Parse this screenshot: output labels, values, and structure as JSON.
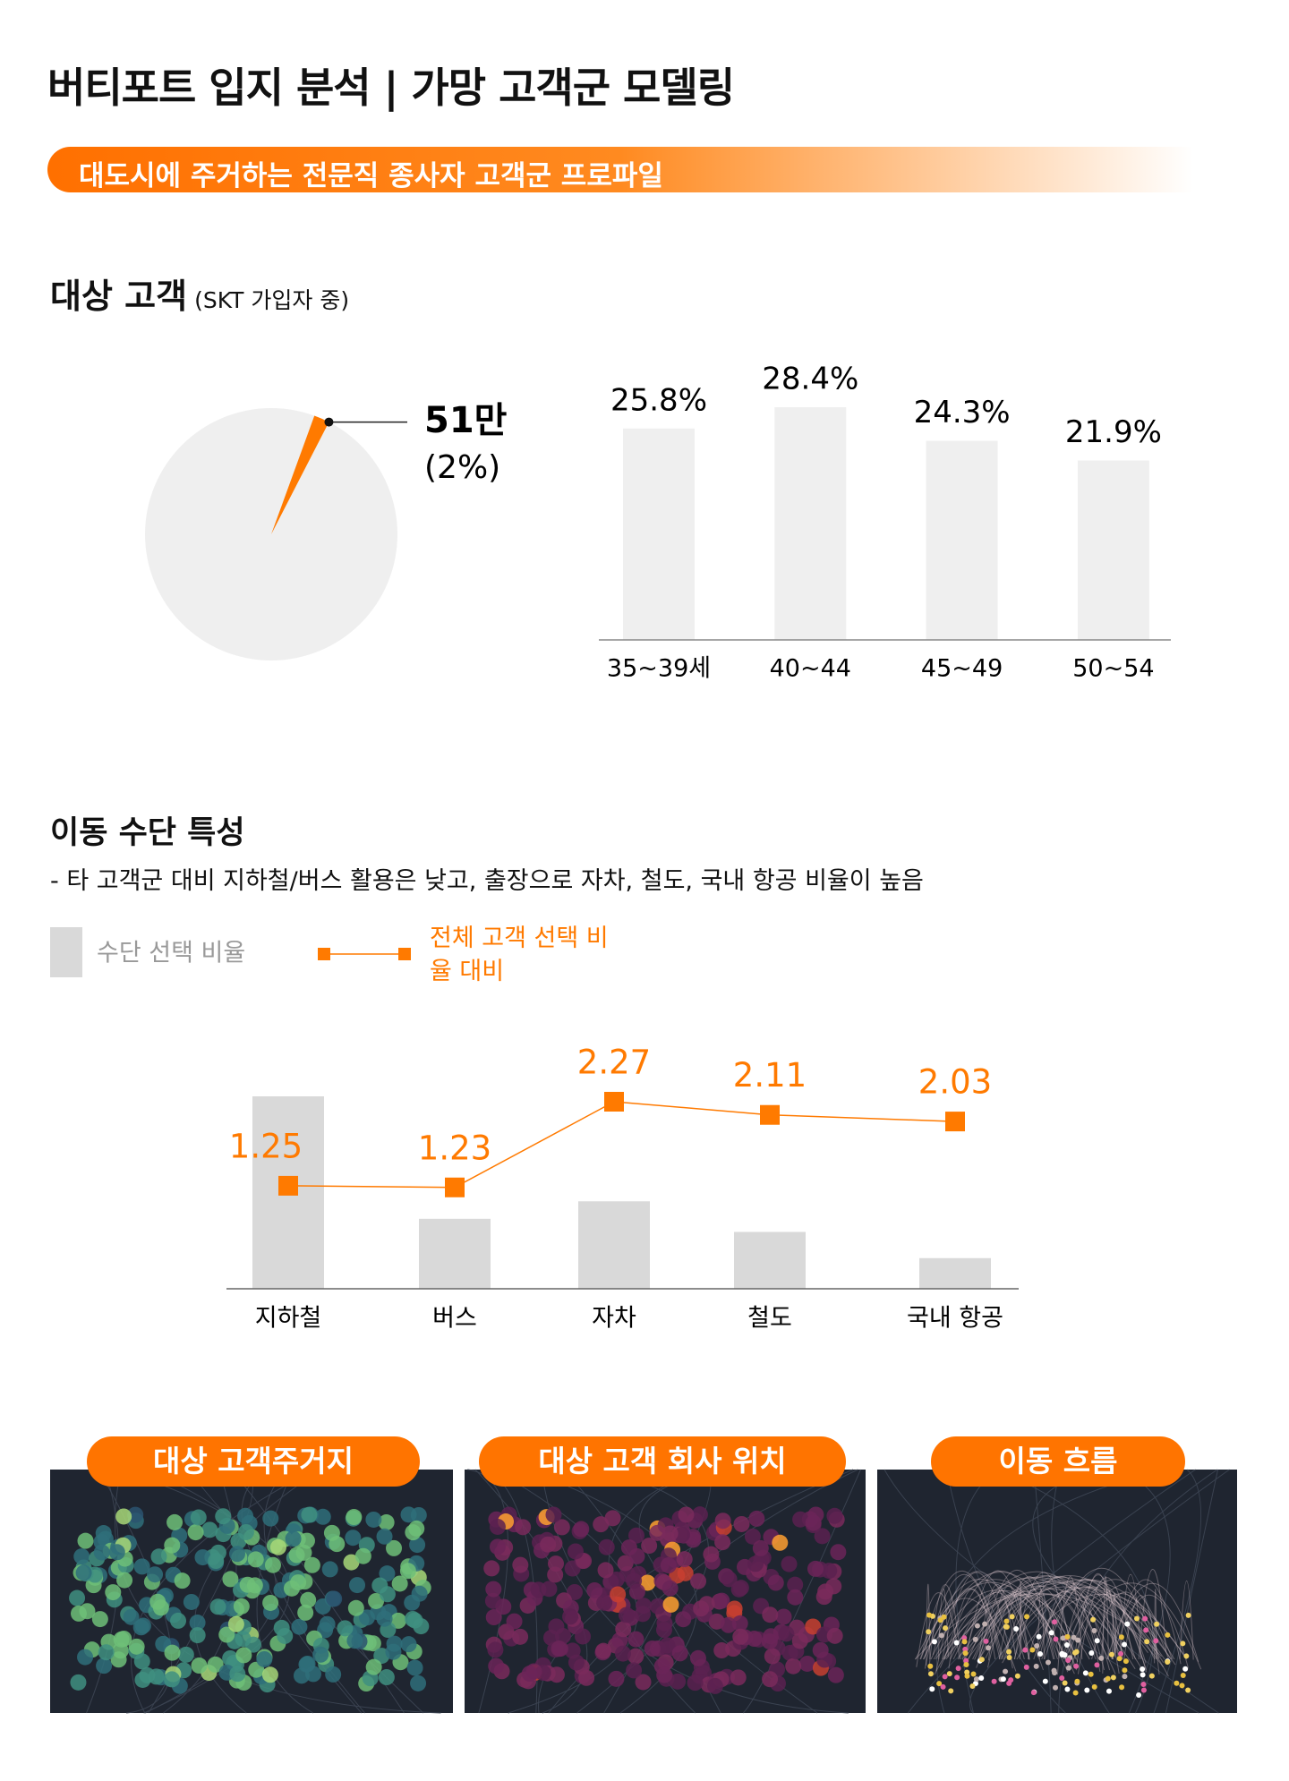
{
  "header": {
    "title": "버티포트 입지 분석 | 가망 고객군 모델링",
    "banner": "대도시에 주거하는 전문직 종사자 고객군 프로파일"
  },
  "target_section": {
    "title": "대상 고객",
    "subtitle": "(SKT 가입자 중)"
  },
  "mobility_section": {
    "title": "이동 수단 특성",
    "note": "- 타 고객군 대비 지하철/버스 활용은 낮고, 출장으로 자차, 철도, 국내 항공 비율이 높음"
  },
  "chart_data": [
    {
      "type": "pie",
      "values": [
        2
      ],
      "value_labels": [
        "(2%)"
      ],
      "annotation": "51만",
      "color": "#ff7a00",
      "background": "#efefef"
    },
    {
      "type": "bar",
      "categories": [
        "35~39세",
        "40~44",
        "45~49",
        "50~54"
      ],
      "values": [
        25.8,
        28.4,
        24.3,
        21.9
      ],
      "value_labels": [
        "25.8%",
        "28.4%",
        "24.3%",
        "21.9%"
      ],
      "color": "#efefef"
    },
    {
      "type": "bar-line",
      "categories": [
        "지하철",
        "버스",
        "자차",
        "철도",
        "국내 항공"
      ],
      "series": [
        {
          "name": "수단 선택 비율",
          "type": "bar",
          "color": "#d9d9d9",
          "values": [
            44,
            16,
            20,
            13,
            7
          ]
        },
        {
          "name": "전체 고객 선택 비율 대비",
          "type": "line",
          "axis": "y2",
          "color": "#ff7a00",
          "values": [
            1.25,
            1.23,
            2.27,
            2.11,
            2.03
          ]
        }
      ]
    }
  ],
  "maps": [
    {
      "label": "대상 고객주거지"
    },
    {
      "label": "대상 고객 회사 위치"
    },
    {
      "label": "이동 흐름"
    }
  ]
}
